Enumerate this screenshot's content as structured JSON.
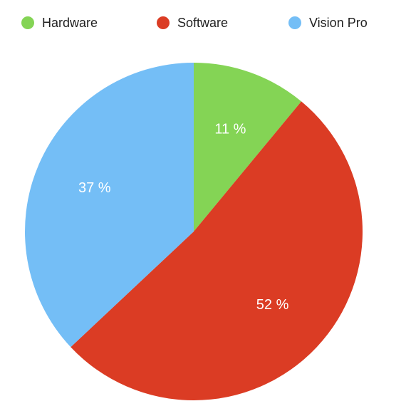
{
  "chart_data": {
    "type": "pie",
    "categories": [
      "Hardware",
      "Software",
      "Vision Pro"
    ],
    "values": [
      11,
      52,
      37
    ],
    "value_labels": [
      "11 %",
      "52 %",
      "37 %"
    ],
    "colors": [
      "#84D455",
      "#DB3C24",
      "#74BEF6"
    ],
    "legend_position": "top",
    "start_angle": "12 o'clock, clockwise"
  }
}
